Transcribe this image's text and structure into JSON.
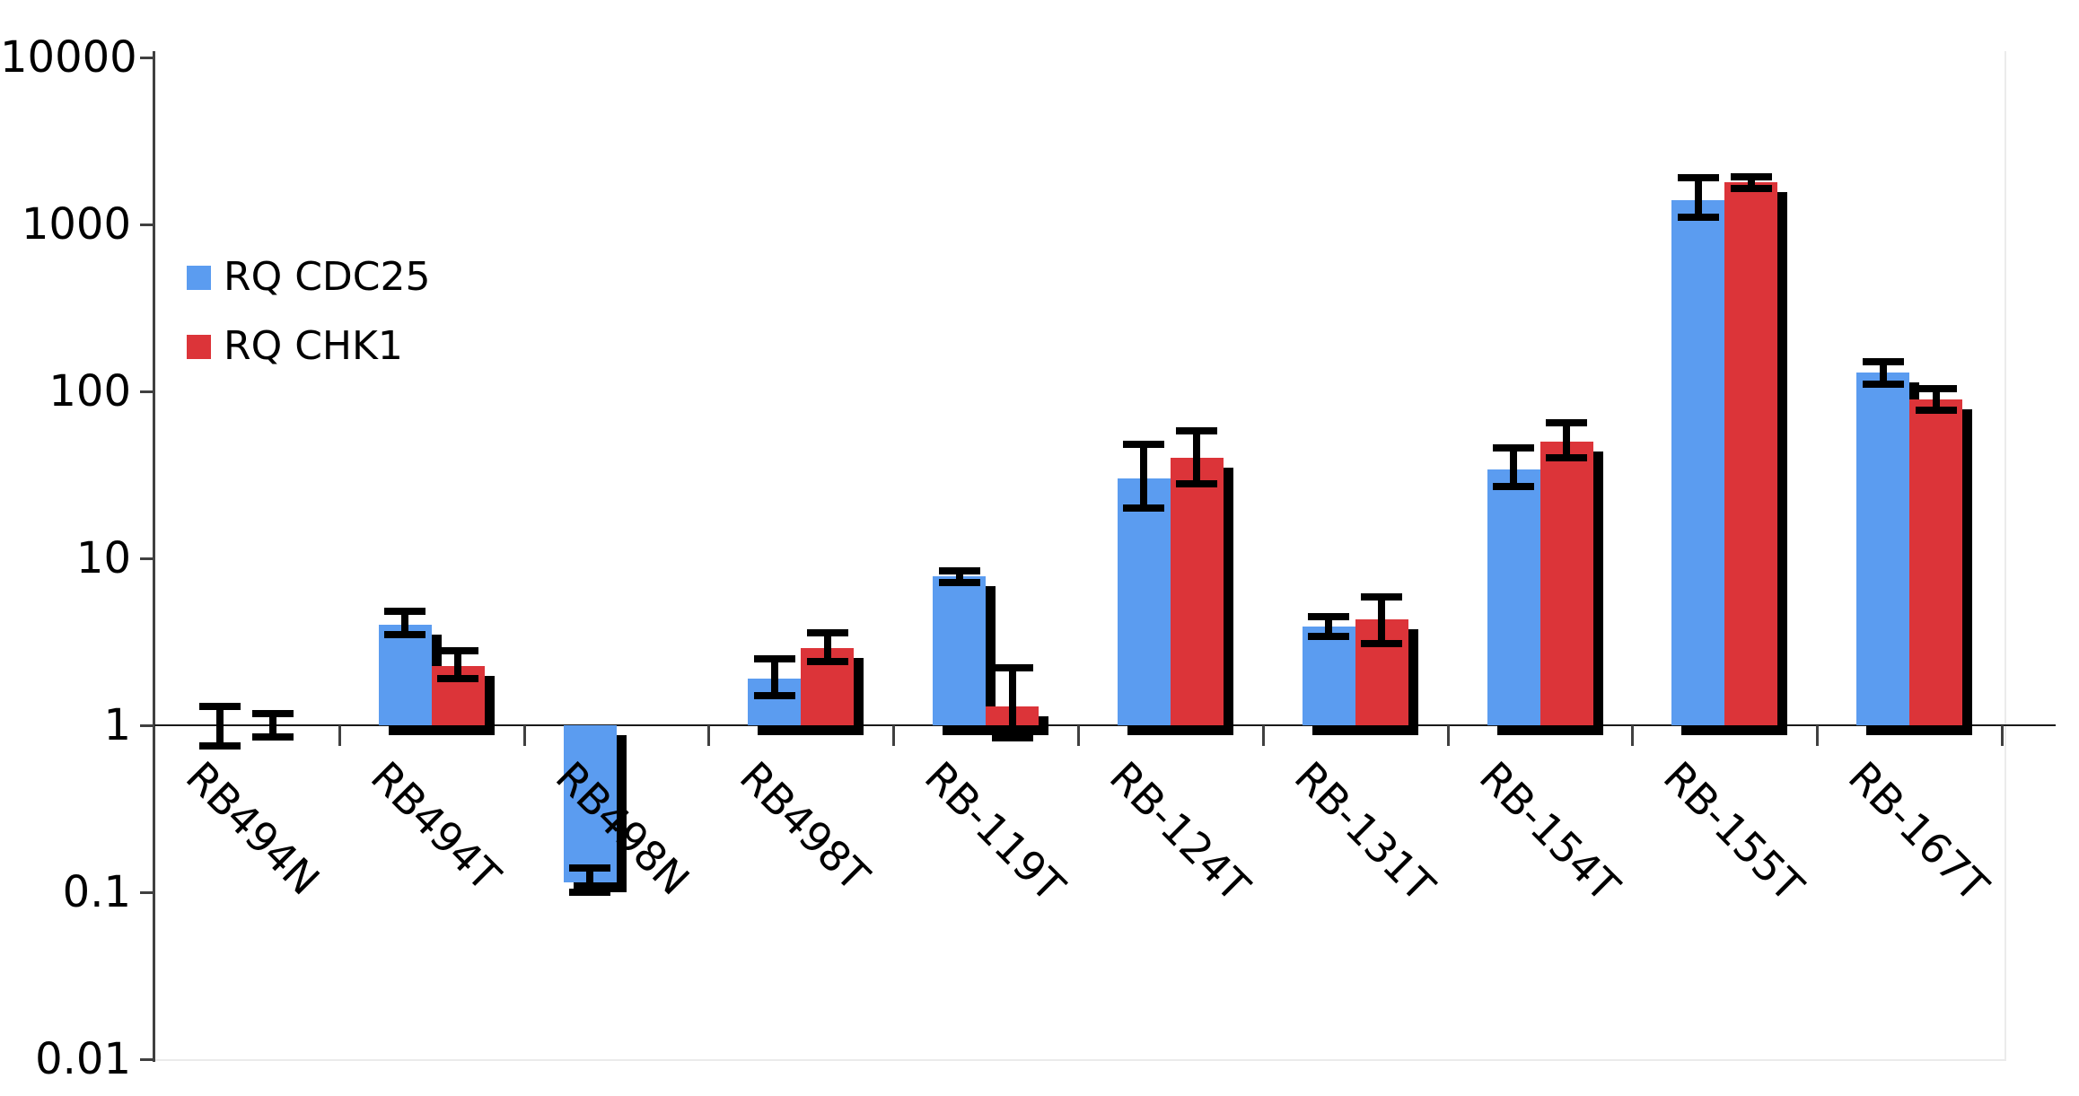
{
  "chart_data": {
    "type": "bar",
    "scale": "log",
    "title": "",
    "xlabel": "",
    "ylabel": "",
    "grid": false,
    "legend_position": "upper-left-inside",
    "ylim": [
      0.01,
      10000
    ],
    "baseline": 1,
    "y_tick_labels": [
      "10000",
      "1000",
      "100",
      "10",
      "1",
      "0.1",
      "0.01"
    ],
    "y_tick_values": [
      10000,
      1000,
      100,
      10,
      1,
      0.1,
      0.01
    ],
    "categories": [
      "RB494N",
      "RB494T",
      "RB498N",
      "RB498T",
      "RB-119T",
      "RB-124T",
      "RB-131T",
      "RB-154T",
      "RB-155T",
      "RB-167T"
    ],
    "series": [
      {
        "name": "RQ CDC25",
        "color": "#5B9CF0",
        "values": [
          1.0,
          4.0,
          0.115,
          1.9,
          7.8,
          30,
          3.9,
          34,
          1400,
          130
        ],
        "err_lo": [
          0.75,
          3.5,
          0.1,
          1.5,
          7.2,
          20,
          3.4,
          27,
          1100,
          110
        ],
        "err_hi": [
          1.3,
          4.8,
          0.14,
          2.5,
          8.4,
          48,
          4.5,
          46,
          1900,
          150
        ]
      },
      {
        "name": "RQ CHK1",
        "color": "#DC3439",
        "values": [
          1.0,
          2.25,
          null,
          2.9,
          1.3,
          40,
          4.3,
          50,
          1780,
          90
        ],
        "err_lo": [
          0.85,
          1.9,
          null,
          2.4,
          0.84,
          28,
          3.1,
          40,
          1640,
          77
        ],
        "err_hi": [
          1.17,
          2.8,
          null,
          3.6,
          2.2,
          58,
          5.9,
          65,
          1920,
          104
        ]
      }
    ],
    "style": {
      "bar_shadow_color": "#000000",
      "error_bar_color": "#000000",
      "axis_color": "#404040",
      "baseline_color": "#1a1a1a",
      "plot_border_color": "#ebebeb",
      "background": "#ffffff"
    }
  }
}
